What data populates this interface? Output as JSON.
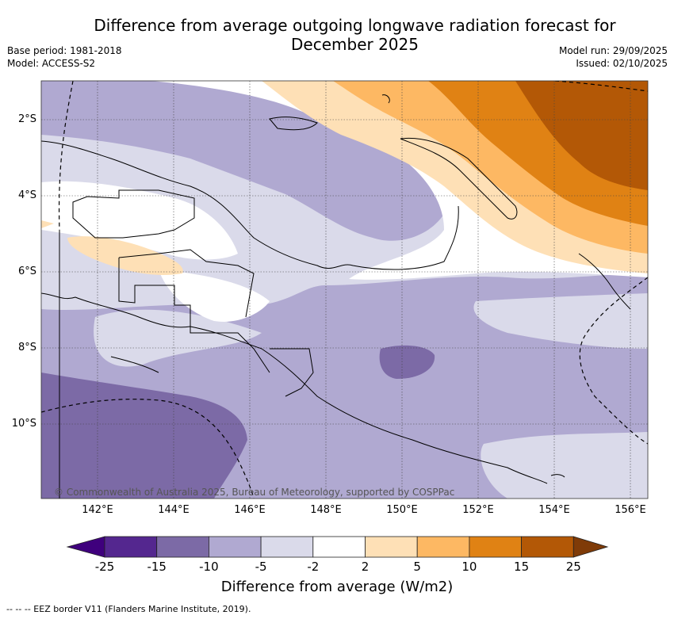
{
  "title_line1": "Difference from average outgoing longwave radiation forecast for",
  "title_line2": "December 2025",
  "meta": {
    "base_period": "Base period: 1981-2018",
    "model": "Model: ACCESS-S2",
    "model_run": "Model run: 29/09/2025",
    "issued": "Issued: 02/10/2025"
  },
  "map": {
    "lon_ticks": [
      "142°E",
      "144°E",
      "146°E",
      "148°E",
      "150°E",
      "152°E",
      "154°E",
      "156°E"
    ],
    "lat_ticks": [
      "2°S",
      "4°S",
      "6°S",
      "8°S",
      "10°S"
    ],
    "copyright": "© Commonwealth of Australia 2025, Bureau of Meteorology, supported by COSPPac"
  },
  "colorbar": {
    "labels": [
      "-25",
      "-15",
      "-10",
      "-5",
      "-2",
      "2",
      "5",
      "10",
      "15",
      "25"
    ],
    "colors": [
      "#3f007d",
      "#54278f",
      "#7c6aa6",
      "#b0a9d1",
      "#dadaea",
      "#ffffff",
      "#fee0b6",
      "#fdb863",
      "#e08214",
      "#b35806",
      "#7f3b08"
    ],
    "title": "Difference from average (W/m2)"
  },
  "footer": "-- -- -- EEZ border V11 (Flanders Marine Institute, 2019)."
}
